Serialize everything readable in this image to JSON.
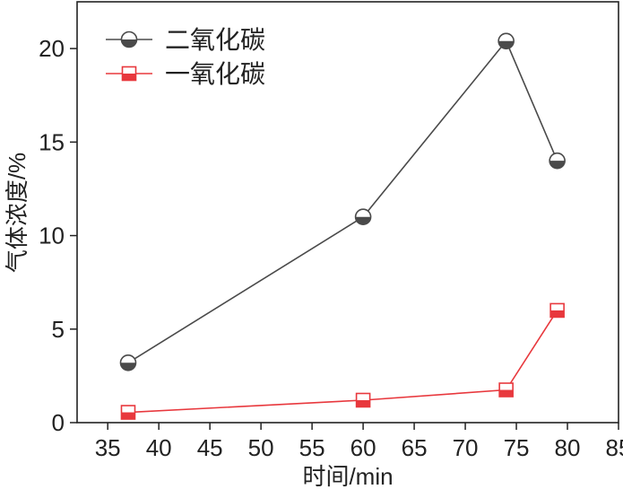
{
  "chart_data": {
    "type": "line",
    "xlabel": "时间/min",
    "ylabel": "气体浓度/%",
    "xlim": [
      32,
      85
    ],
    "ylim": [
      0,
      22.5
    ],
    "xticks": [
      35,
      40,
      45,
      50,
      55,
      60,
      65,
      70,
      75,
      80,
      85
    ],
    "yticks": [
      0,
      5,
      10,
      15,
      20
    ],
    "grid": false,
    "legend_position": "top-left",
    "series": [
      {
        "name": "二氧化碳",
        "color": "#4a4a4a",
        "marker": "half-filled-circle",
        "x": [
          37,
          60,
          74,
          79
        ],
        "y": [
          3.2,
          11.0,
          20.4,
          14.0
        ]
      },
      {
        "name": "一氧化碳",
        "color": "#e8383d",
        "marker": "half-filled-square",
        "x": [
          37,
          60,
          74,
          79
        ],
        "y": [
          0.55,
          1.2,
          1.75,
          6.0
        ]
      }
    ]
  }
}
